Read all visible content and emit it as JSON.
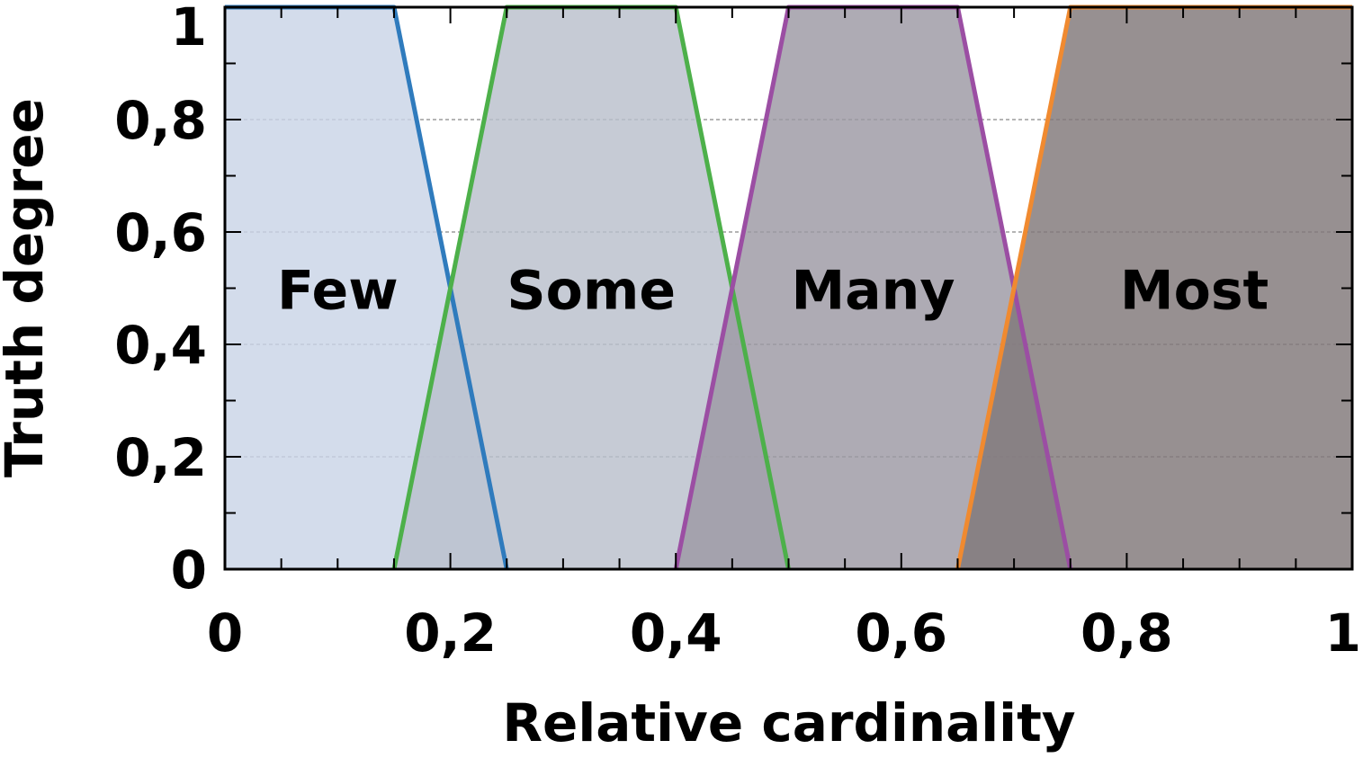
{
  "chart_data": {
    "type": "area",
    "xlabel": "Relative cardinality",
    "ylabel": "Truth degree",
    "xlim": [
      0,
      1
    ],
    "ylim": [
      0,
      1
    ],
    "x_ticks": [
      "0",
      "0,2",
      "0,4",
      "0,6",
      "0,8",
      "1"
    ],
    "y_ticks": [
      "0",
      "0,2",
      "0,4",
      "0,6",
      "0,8",
      "1"
    ],
    "grid": "horizontal dashed",
    "series": [
      {
        "name": "Few",
        "color": "#2f7bbd",
        "fill": "#c9d4e6",
        "x": [
          0,
          0.15,
          0.25
        ],
        "y": [
          1,
          1,
          0
        ]
      },
      {
        "name": "Some",
        "color": "#4db04a",
        "fill": "#b9bfcc",
        "x": [
          0.15,
          0.25,
          0.4,
          0.5
        ],
        "y": [
          0,
          1,
          1,
          0
        ]
      },
      {
        "name": "Many",
        "color": "#9b4ea3",
        "fill": "#9c99a3",
        "x": [
          0.4,
          0.5,
          0.65,
          0.75
        ],
        "y": [
          0,
          1,
          1,
          0
        ]
      },
      {
        "name": "Most",
        "color": "#f08a30",
        "fill": "#807879",
        "x": [
          0.65,
          0.75,
          1
        ],
        "y": [
          0,
          1,
          1
        ]
      }
    ],
    "annotations": [
      {
        "text": "Few",
        "x": 0.1,
        "y": 0.5
      },
      {
        "text": "Some",
        "x": 0.325,
        "y": 0.5
      },
      {
        "text": "Many",
        "x": 0.575,
        "y": 0.5
      },
      {
        "text": "Most",
        "x": 0.86,
        "y": 0.5
      }
    ]
  }
}
